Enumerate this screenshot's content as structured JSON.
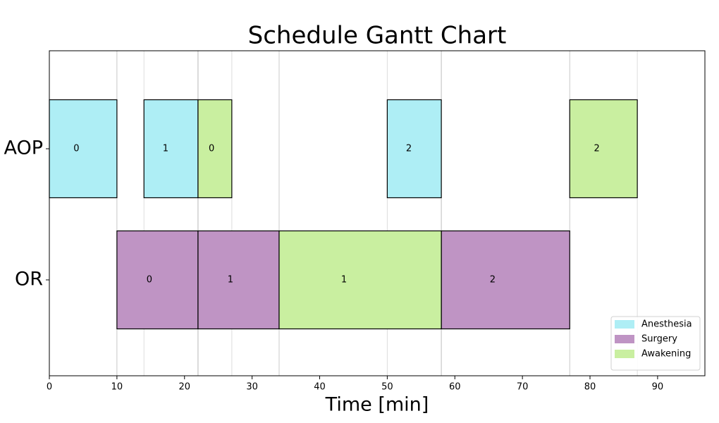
{
  "chart_data": {
    "type": "gantt",
    "title": "Schedule Gantt Chart",
    "x_label": "Time [min]",
    "categories": [
      "AOP",
      "OR"
    ],
    "xlim": [
      0,
      97
    ],
    "xticks": [
      0,
      10,
      20,
      30,
      40,
      50,
      60,
      70,
      80,
      90
    ],
    "legend": "lower right",
    "series": [
      {
        "name": "Anesthesia",
        "color": "#aeeef5",
        "tasks": [
          {
            "category": "AOP",
            "job": "0",
            "start": 0,
            "end": 10
          },
          {
            "category": "AOP",
            "job": "1",
            "start": 14,
            "end": 22
          },
          {
            "category": "AOP",
            "job": "2",
            "start": 50,
            "end": 58
          }
        ]
      },
      {
        "name": "Surgery",
        "color": "#bf94c4",
        "tasks": [
          {
            "category": "OR",
            "job": "0",
            "start": 10,
            "end": 22
          },
          {
            "category": "OR",
            "job": "1",
            "start": 22,
            "end": 34
          },
          {
            "category": "OR",
            "job": "2",
            "start": 58,
            "end": 77
          }
        ]
      },
      {
        "name": "Awakening",
        "color": "#c9efa0",
        "tasks": [
          {
            "category": "AOP",
            "job": "0",
            "start": 22,
            "end": 27
          },
          {
            "category": "OR",
            "job": "1",
            "start": 34,
            "end": 58
          },
          {
            "category": "AOP",
            "job": "2",
            "start": 77,
            "end": 87
          }
        ]
      }
    ]
  }
}
